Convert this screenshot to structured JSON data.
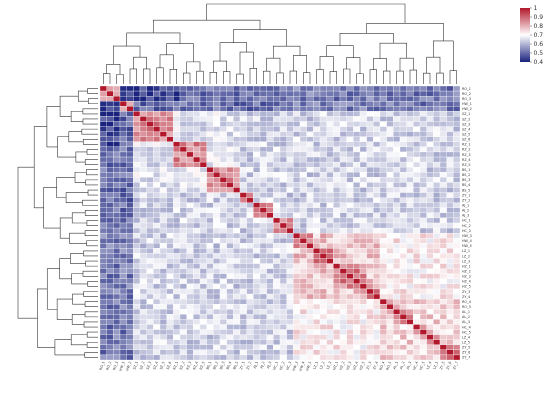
{
  "chart_data": {
    "type": "heatmap",
    "title": "",
    "row_labels": [
      "RO_1",
      "RO_2",
      "RO_3",
      "HW_1",
      "HW_2",
      "SZ_1",
      "SZ_2",
      "SZ_3",
      "SZ_4",
      "SZ_5",
      "SZ_6",
      "RZ_1",
      "RZ_2",
      "RZ_3",
      "RZ_4",
      "RZ_5",
      "BS_1",
      "BS_2",
      "BS_3",
      "BS_4",
      "BS_5",
      "ZY_1",
      "ZY_2",
      "AJ_1",
      "AJ_2",
      "AJ_3",
      "HC_1",
      "HC_2",
      "HC_3",
      "HW_3",
      "HW_4",
      "HW_5",
      "LZ_1",
      "LZ_2",
      "LZ_3",
      "HZ_1",
      "HZ_2",
      "HZ_3",
      "HZ_4",
      "HZ_5",
      "ZY_3",
      "ZY_4",
      "RO_4",
      "RO_5",
      "AL_1",
      "AL_2",
      "AL_3",
      "HC_4",
      "HC_5",
      "LZ_4",
      "LZ_5",
      "ZY_5",
      "ZY_6",
      "ZY_7"
    ],
    "groups": [
      "RO",
      "RO",
      "RO",
      "HW",
      "HW",
      "SZ",
      "SZ",
      "SZ",
      "SZ",
      "SZ",
      "SZ",
      "RZ",
      "RZ",
      "RZ",
      "RZ",
      "RZ",
      "BS",
      "BS",
      "BS",
      "BS",
      "BS",
      "ZY",
      "ZY",
      "AJ",
      "AJ",
      "AJ",
      "HC",
      "HC",
      "HC",
      "HW",
      "HW",
      "HW",
      "LZ",
      "LZ",
      "LZ",
      "HZ",
      "HZ",
      "HZ",
      "HZ",
      "HZ",
      "ZY",
      "ZY",
      "RO",
      "RO",
      "AL",
      "AL",
      "AL",
      "HC",
      "HC",
      "LZ",
      "LZ",
      "ZY",
      "ZY",
      "ZY"
    ],
    "legend": {
      "ticks": [
        1,
        0.9,
        0.8,
        0.7,
        0.6,
        0.5,
        0.4
      ],
      "min": 0.4,
      "max": 1
    },
    "colors": {
      "high": "#b2182b",
      "mid": "#ffffff",
      "low": "#1a237e"
    }
  }
}
